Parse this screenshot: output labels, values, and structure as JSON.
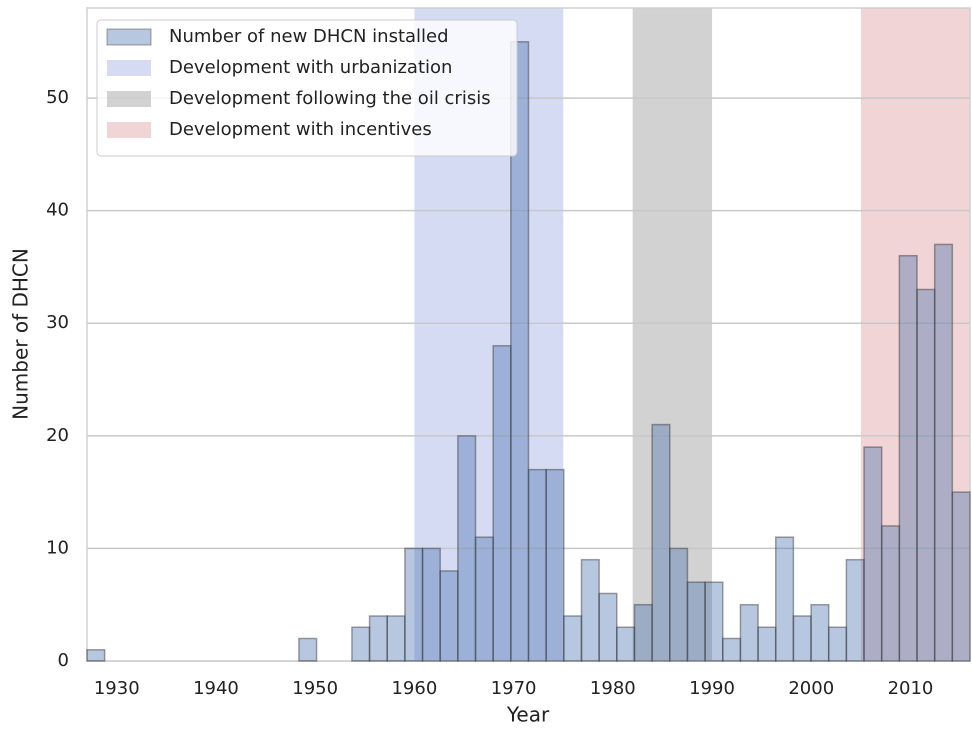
{
  "chart_data": {
    "type": "histogram",
    "xlabel": "Year",
    "ylabel": "Number of DHCN",
    "bins": [
      1927,
      1928.78,
      1930.56,
      1932.34,
      1934.12,
      1935.9,
      1937.68,
      1939.46,
      1941.24,
      1943.02,
      1944.8,
      1946.58,
      1948.36,
      1950.14,
      1951.92,
      1953.7,
      1955.48,
      1957.26,
      1959.04,
      1960.82,
      1962.6,
      1964.38,
      1966.16,
      1967.94,
      1969.72,
      1971.5,
      1973.28,
      1975.06,
      1976.84,
      1978.62,
      1980.4,
      1982.18,
      1983.96,
      1985.74,
      1987.52,
      1989.3,
      1991.08,
      1992.86,
      1994.64,
      1996.42,
      1998.2,
      1999.98,
      2001.76,
      2003.54,
      2005.32,
      2007.1,
      2008.88,
      2010.66,
      2012.44,
      2014.22,
      2016
    ],
    "series": [
      {
        "name": "Number of new DHCN installed",
        "color": "#4c72b0",
        "values": [
          1,
          0,
          0,
          0,
          0,
          0,
          0,
          0,
          0,
          0,
          0,
          0,
          2,
          0,
          0,
          3,
          4,
          4,
          10,
          10,
          8,
          20,
          11,
          28,
          55,
          17,
          17,
          4,
          9,
          6,
          3,
          5,
          21,
          10,
          7,
          7,
          2,
          5,
          3,
          11,
          4,
          5,
          3,
          9,
          19,
          12,
          36,
          33,
          37,
          15
        ]
      }
    ],
    "spans": [
      {
        "name": "Development with urbanization",
        "color": "#aab8e8",
        "start": 1960,
        "end": 1975
      },
      {
        "name": "Development following the oil crisis",
        "color": "#a6a6a6",
        "start": 1982,
        "end": 1990
      },
      {
        "name": "Development with incentives",
        "color": "#e3a9ae",
        "start": 2005,
        "end": 2016
      }
    ],
    "xlim": [
      1927,
      2016
    ],
    "ylim": [
      0,
      58
    ],
    "xticks": [
      1930,
      1940,
      1950,
      1960,
      1970,
      1980,
      1990,
      2000,
      2010
    ],
    "yticks": [
      0,
      10,
      20,
      30,
      40,
      50
    ],
    "grid": true,
    "legend": "upper left"
  }
}
